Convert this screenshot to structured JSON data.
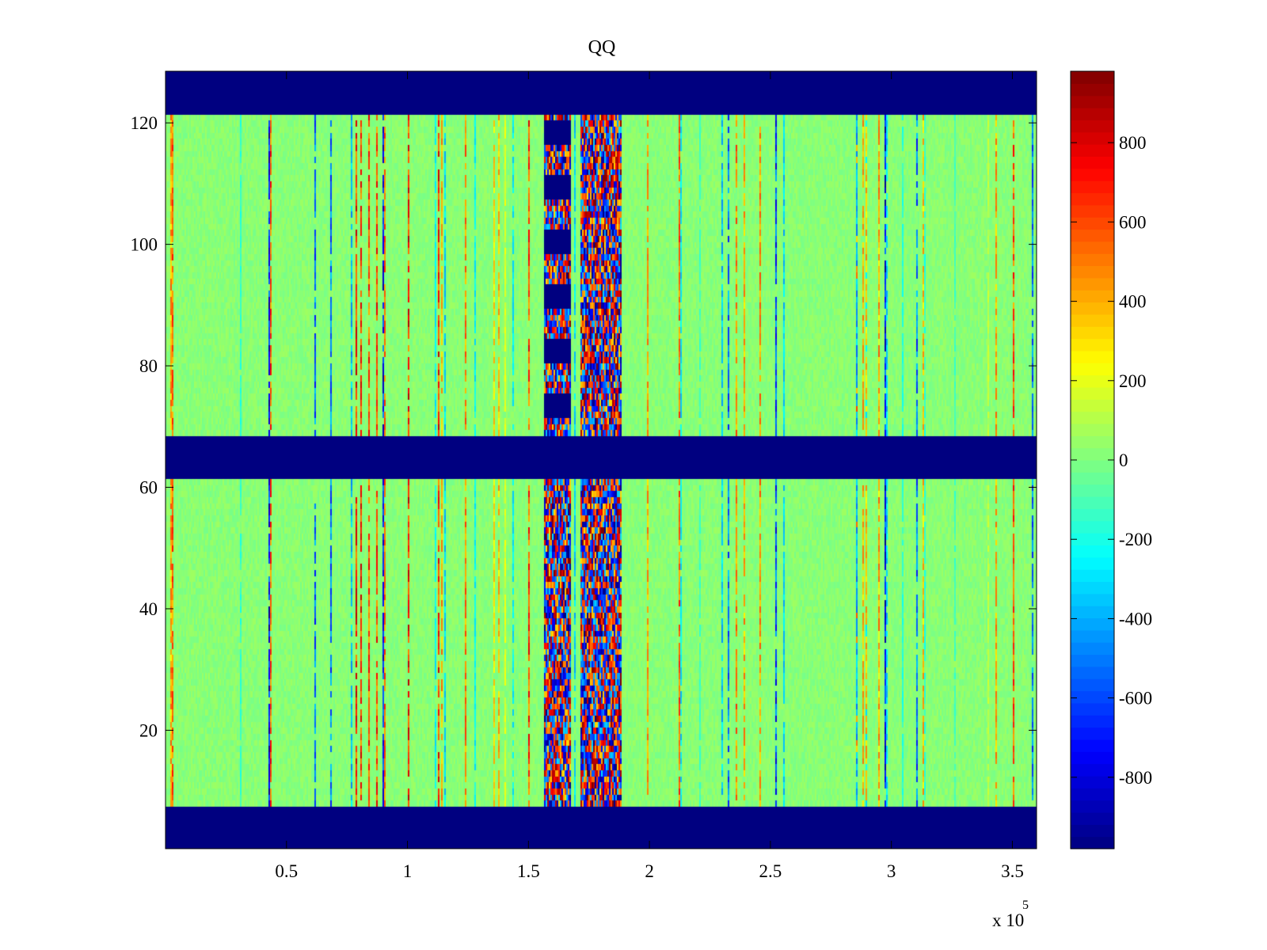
{
  "chart_data": {
    "type": "heatmap",
    "title": "QQ",
    "xlabel": "",
    "ylabel": "",
    "x_scale_label": {
      "base": "x 10",
      "exponent": "5"
    },
    "xlim": [
      0,
      3.6
    ],
    "ylim": [
      0.5,
      128.5
    ],
    "x_ticks": [
      0.5,
      1,
      1.5,
      2,
      2.5,
      3,
      3.5
    ],
    "x_tick_labels": [
      "0.5",
      "1",
      "1.5",
      "2",
      "2.5",
      "3",
      "3.5"
    ],
    "y_ticks": [
      20,
      40,
      60,
      80,
      100,
      120
    ],
    "y_tick_labels": [
      "20",
      "40",
      "60",
      "80",
      "100",
      "120"
    ],
    "colormap": "jet",
    "clim": [
      -980,
      980
    ],
    "colorbar": {
      "ticks": [
        -800,
        -600,
        -400,
        -200,
        0,
        200,
        400,
        600,
        800
      ],
      "tick_labels": [
        "-800",
        "-600",
        "-400",
        "-200",
        "0",
        "200",
        "400",
        "600",
        "800"
      ]
    },
    "masked_row_bands": [
      {
        "rows": [
          1,
          7
        ],
        "value": -980
      },
      {
        "rows": [
          62,
          68
        ],
        "value": -980
      },
      {
        "rows": [
          122,
          128
        ],
        "value": -980
      }
    ],
    "background_value": 20,
    "high_variance_column_bands": [
      {
        "x": [
          1.56,
          1.67
        ],
        "contains_masked_block_in_upper_half": true
      },
      {
        "x": [
          1.71,
          1.88
        ]
      }
    ],
    "grid": false,
    "legend": "none"
  }
}
